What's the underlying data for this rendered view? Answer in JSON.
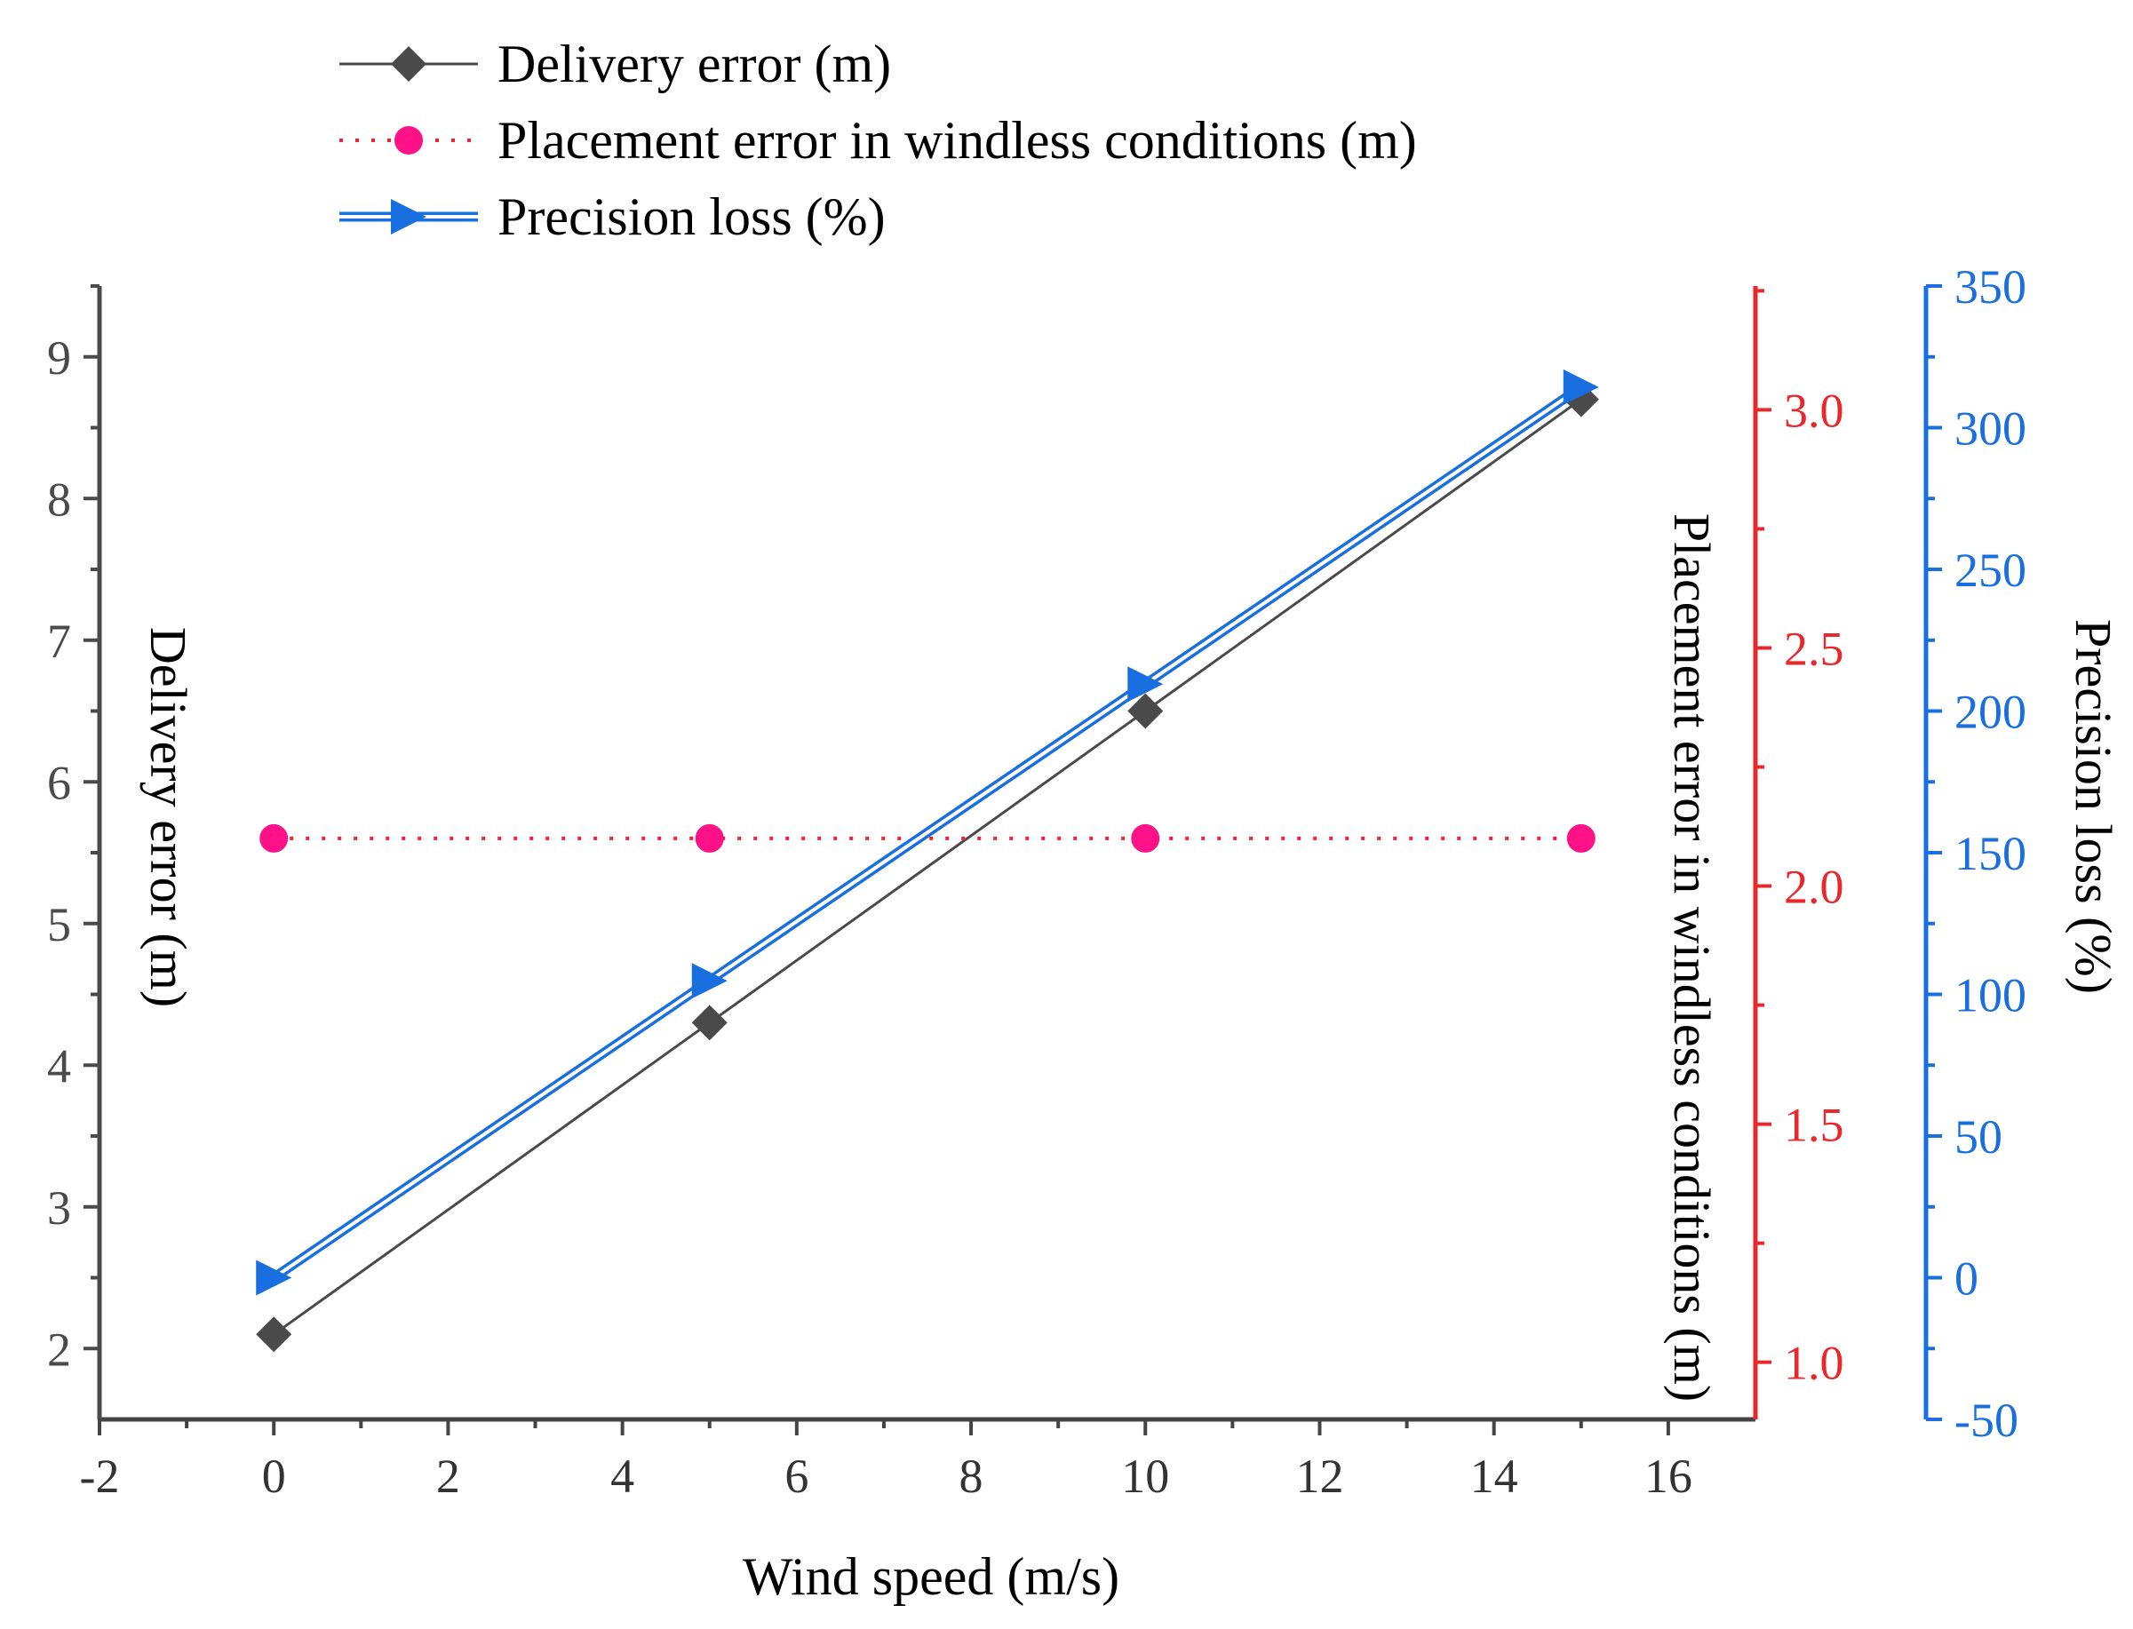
{
  "chart_data": {
    "type": "line",
    "x": [
      0,
      5,
      10,
      15
    ],
    "xlabel": "Wind speed (m/s)",
    "xlim": [
      -2,
      17
    ],
    "xticks": [
      -2,
      0,
      2,
      4,
      6,
      8,
      10,
      12,
      14,
      16
    ],
    "series": [
      {
        "name": "Delivery error (m)",
        "axis": "left",
        "values": [
          2.1,
          4.3,
          6.5,
          8.7
        ],
        "color": "#4a4a4a",
        "marker": "diamond",
        "line": "solid"
      },
      {
        "name": "Placement error in windless conditions (m)",
        "axis": "right1",
        "values": [
          2.1,
          2.1,
          2.1,
          2.1
        ],
        "color": "#ff1188",
        "line_color": "#e8282d",
        "marker": "circle",
        "line": "dotted"
      },
      {
        "name": "Precision loss (%)",
        "axis": "right2",
        "values": [
          0,
          104.8,
          209.5,
          314.3
        ],
        "color": "#1a6fe0",
        "marker": "triangle-right",
        "line": "double"
      }
    ],
    "axes": {
      "left": {
        "label": "Delivery error (m)",
        "ylim": [
          1.5,
          9.5
        ],
        "ticks": [
          2,
          3,
          4,
          5,
          6,
          7,
          8,
          9
        ],
        "color": "#4a4a4a"
      },
      "right1": {
        "label": "Placement error in windless conditions (m)",
        "ylim": [
          0.88,
          3.26
        ],
        "ticks": [
          1.0,
          1.5,
          2.0,
          2.5,
          3.0
        ],
        "tick_labels": [
          "1.0",
          "1.5",
          "2.0",
          "2.5",
          "3.0"
        ],
        "color": "#e8282d"
      },
      "right2": {
        "label": "Precision loss (%)",
        "ylim": [
          -50,
          350
        ],
        "ticks": [
          -50,
          0,
          50,
          100,
          150,
          200,
          250,
          300,
          350
        ],
        "color": "#1a6fe0"
      }
    },
    "legend_position": "top-left"
  }
}
